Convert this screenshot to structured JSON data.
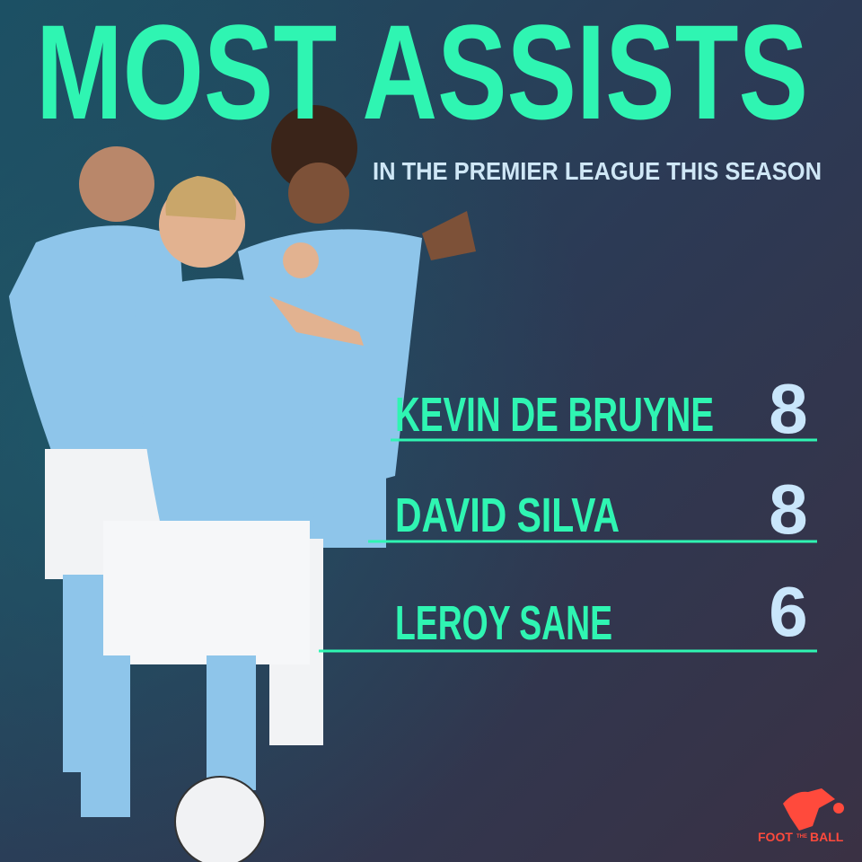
{
  "header": {
    "title": "MOST ASSISTS",
    "subtitle": "IN THE PREMIER LEAGUE THIS SEASON"
  },
  "table": {
    "rows": [
      {
        "name": "KEVIN DE BRUYNE",
        "assists": 8
      },
      {
        "name": "DAVID SILVA",
        "assists": 8
      },
      {
        "name": "LEROY SANE",
        "assists": 6
      }
    ]
  },
  "logo": {
    "text": [
      "FOOT",
      "THE",
      "BALL"
    ]
  }
}
